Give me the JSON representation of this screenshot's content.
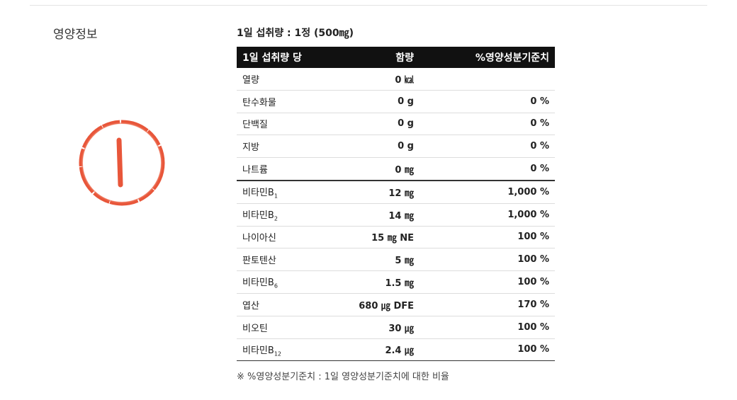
{
  "section_title": "영양정보",
  "serving": "1일 섭취량 : 1정 (500㎎)",
  "table": {
    "header": [
      "1일 섭취량 당",
      "함량",
      "%영양성분기준치"
    ],
    "rows": [
      {
        "name": "열량",
        "amount": "0 ㎉"
      },
      {
        "name": "탄수화물",
        "amount": "0 g",
        "percent": "0 %"
      },
      {
        "name": "단백질",
        "amount": "0 g",
        "percent": "0 %"
      },
      {
        "name": "지방",
        "amount": "0 g",
        "percent": "0 %"
      },
      {
        "name": "나트륨",
        "amount": "0 ㎎",
        "percent": "0 %"
      },
      {
        "name": "비타민B",
        "sub": "1",
        "amount": "12 ㎎",
        "percent": "1,000 %"
      },
      {
        "name": "비타민B",
        "sub": "2",
        "amount": "14 ㎎",
        "percent": "1,000 %"
      },
      {
        "name": "나이아신",
        "amount": "15 ㎎ NE",
        "percent": "100 %"
      },
      {
        "name": "판토텐산",
        "amount": "5 ㎎",
        "percent": "100 %"
      },
      {
        "name": "비타민B",
        "sub": "6",
        "amount": "1.5 ㎎",
        "percent": "100 %"
      },
      {
        "name": "엽산",
        "amount": "680 ㎍ DFE",
        "percent": "170 %"
      },
      {
        "name": "비오틴",
        "amount": "30 ㎍",
        "percent": "100 %"
      },
      {
        "name": "비타민B",
        "sub": "12",
        "amount": "2.4 ㎍",
        "percent": "100 %"
      }
    ]
  },
  "footnote": "※ %영양성분기준치 : 1일 영양성분기준치에 대한 비율"
}
